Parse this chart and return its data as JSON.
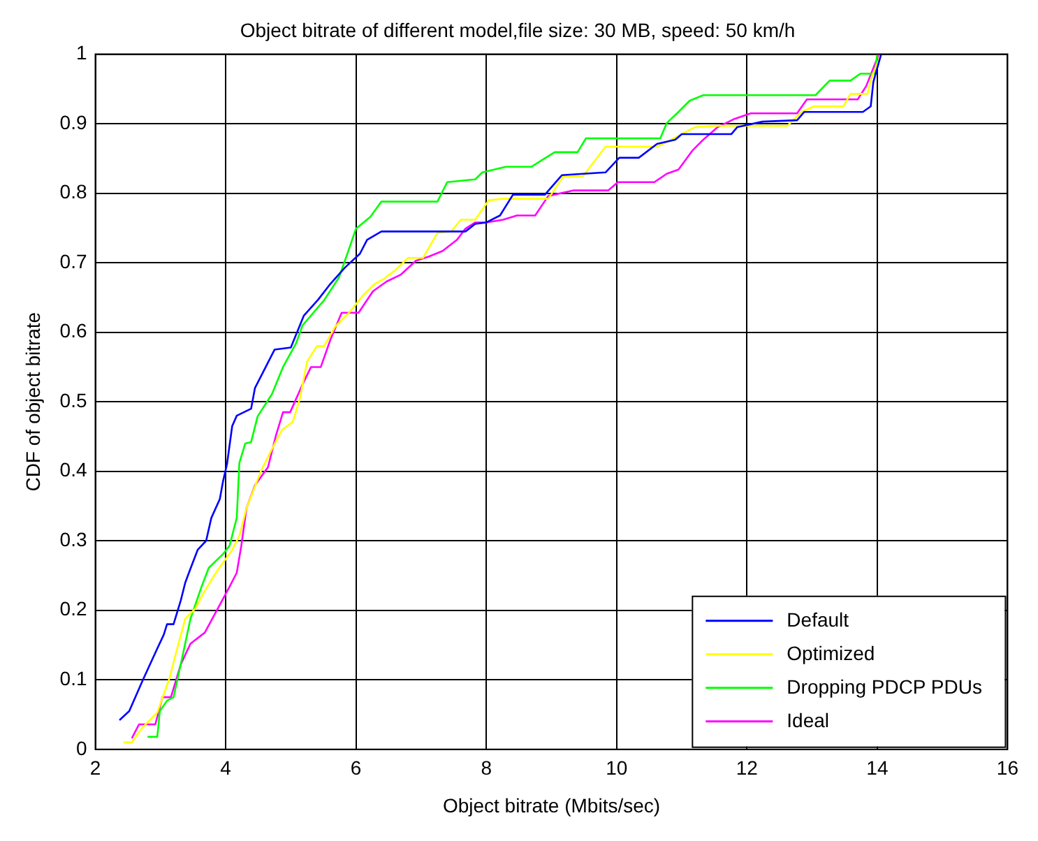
{
  "chart_data": {
    "type": "line",
    "title": "Object bitrate of different model,file size: 30 MB, speed: 50 km/h",
    "xlabel": "Object bitrate (Mbits/sec)",
    "ylabel": "CDF of object bitrate",
    "xlim": [
      2,
      16
    ],
    "xticks": [
      2,
      4,
      6,
      8,
      10,
      12,
      14,
      16
    ],
    "ylim": [
      0,
      1
    ],
    "yticks": [
      0,
      0.1,
      0.2,
      0.3,
      0.4,
      0.5,
      0.6,
      0.7,
      0.8,
      0.9,
      1
    ],
    "grid": true,
    "legend": "bottom right",
    "line_style": "solid",
    "marker": "none",
    "series": [
      {
        "name": "Default",
        "color": "#0000ff",
        "x": [
          2.37,
          2.52,
          2.73,
          2.95,
          3.05,
          3.1,
          3.2,
          3.31,
          3.38,
          3.46,
          3.57,
          3.7,
          3.78,
          3.91,
          3.96,
          4.02,
          4.1,
          4.17,
          4.39,
          4.45,
          4.56,
          4.75,
          5.0,
          5.2,
          5.42,
          5.61,
          5.83,
          6.06,
          6.17,
          6.39,
          7.23,
          7.68,
          7.83,
          8.0,
          8.21,
          8.41,
          8.9,
          9.16,
          9.83,
          10.04,
          10.34,
          10.62,
          10.9,
          11.0,
          11.76,
          11.85,
          12.24,
          12.77,
          12.88,
          13.78,
          13.9,
          13.94,
          14.06
        ],
        "values": [
          0.042,
          0.055,
          0.1,
          0.145,
          0.165,
          0.18,
          0.18,
          0.214,
          0.24,
          0.26,
          0.287,
          0.3,
          0.333,
          0.36,
          0.386,
          0.41,
          0.465,
          0.48,
          0.49,
          0.52,
          0.54,
          0.575,
          0.578,
          0.624,
          0.647,
          0.67,
          0.693,
          0.713,
          0.733,
          0.745,
          0.745,
          0.745,
          0.756,
          0.758,
          0.768,
          0.798,
          0.798,
          0.826,
          0.83,
          0.851,
          0.851,
          0.871,
          0.877,
          0.885,
          0.885,
          0.895,
          0.903,
          0.905,
          0.917,
          0.917,
          0.925,
          0.96,
          1.0
        ]
      },
      {
        "name": "Optimized",
        "color": "#ffff00",
        "x": [
          2.43,
          2.56,
          2.71,
          2.95,
          3.14,
          3.25,
          3.38,
          3.53,
          3.68,
          3.85,
          4.1,
          4.21,
          4.32,
          4.54,
          4.71,
          4.86,
          5.03,
          5.14,
          5.25,
          5.4,
          5.51,
          5.68,
          5.89,
          6.11,
          6.28,
          6.43,
          6.6,
          6.8,
          7.03,
          7.25,
          7.46,
          7.61,
          7.83,
          8.04,
          8.26,
          8.95,
          9.18,
          9.48,
          9.83,
          10.62,
          10.84,
          11.2,
          11.55,
          12.62,
          12.84,
          13.03,
          13.48,
          13.59,
          13.85,
          13.91,
          14.06
        ],
        "values": [
          0.01,
          0.01,
          0.03,
          0.053,
          0.103,
          0.143,
          0.188,
          0.202,
          0.228,
          0.254,
          0.287,
          0.307,
          0.347,
          0.4,
          0.432,
          0.459,
          0.471,
          0.505,
          0.558,
          0.58,
          0.58,
          0.608,
          0.628,
          0.653,
          0.669,
          0.677,
          0.689,
          0.707,
          0.707,
          0.743,
          0.745,
          0.762,
          0.762,
          0.79,
          0.792,
          0.792,
          0.824,
          0.824,
          0.867,
          0.867,
          0.877,
          0.895,
          0.897,
          0.897,
          0.917,
          0.925,
          0.925,
          0.943,
          0.943,
          0.966,
          1.0
        ]
      },
      {
        "name": "Dropping PDCP PDUs",
        "color": "#00ff00",
        "x": [
          2.8,
          2.95,
          2.99,
          3.1,
          3.2,
          3.31,
          3.46,
          3.63,
          3.74,
          3.96,
          4.06,
          4.17,
          4.21,
          4.3,
          4.39,
          4.49,
          4.71,
          4.88,
          5.08,
          5.18,
          5.51,
          5.74,
          5.89,
          6.0,
          6.22,
          6.39,
          7.25,
          7.4,
          7.83,
          7.94,
          8.3,
          8.69,
          8.86,
          9.05,
          9.4,
          9.53,
          10.67,
          10.77,
          10.95,
          11.12,
          11.33,
          13.05,
          13.27,
          13.59,
          13.74,
          13.96,
          14.0
        ],
        "values": [
          0.018,
          0.018,
          0.055,
          0.07,
          0.075,
          0.122,
          0.188,
          0.234,
          0.261,
          0.281,
          0.293,
          0.333,
          0.412,
          0.44,
          0.442,
          0.479,
          0.511,
          0.55,
          0.584,
          0.61,
          0.646,
          0.679,
          0.719,
          0.749,
          0.766,
          0.788,
          0.788,
          0.816,
          0.82,
          0.83,
          0.838,
          0.838,
          0.848,
          0.859,
          0.859,
          0.879,
          0.879,
          0.901,
          0.917,
          0.933,
          0.941,
          0.941,
          0.962,
          0.962,
          0.972,
          0.972,
          1.0
        ]
      },
      {
        "name": "Ideal",
        "color": "#ff00ff",
        "x": [
          2.56,
          2.67,
          2.92,
          3.03,
          3.16,
          3.31,
          3.46,
          3.68,
          3.91,
          4.06,
          4.17,
          4.24,
          4.32,
          4.45,
          4.65,
          4.77,
          4.88,
          4.99,
          5.18,
          5.31,
          5.46,
          5.61,
          5.78,
          6.04,
          6.26,
          6.47,
          6.69,
          6.92,
          7.12,
          7.33,
          7.55,
          7.68,
          7.83,
          8.0,
          8.26,
          8.47,
          8.75,
          8.95,
          9.33,
          9.87,
          10.02,
          10.58,
          10.77,
          10.95,
          11.16,
          11.33,
          11.55,
          11.81,
          12.06,
          12.77,
          12.92,
          13.7,
          13.83,
          14.0,
          14.02
        ],
        "values": [
          0.016,
          0.036,
          0.036,
          0.075,
          0.075,
          0.122,
          0.152,
          0.168,
          0.208,
          0.234,
          0.254,
          0.293,
          0.347,
          0.38,
          0.406,
          0.451,
          0.485,
          0.485,
          0.525,
          0.55,
          0.55,
          0.59,
          0.628,
          0.628,
          0.659,
          0.673,
          0.683,
          0.703,
          0.709,
          0.717,
          0.733,
          0.749,
          0.758,
          0.758,
          0.762,
          0.768,
          0.768,
          0.796,
          0.804,
          0.804,
          0.816,
          0.816,
          0.828,
          0.834,
          0.861,
          0.877,
          0.895,
          0.907,
          0.915,
          0.915,
          0.935,
          0.935,
          0.954,
          0.994,
          1.0
        ]
      }
    ]
  }
}
